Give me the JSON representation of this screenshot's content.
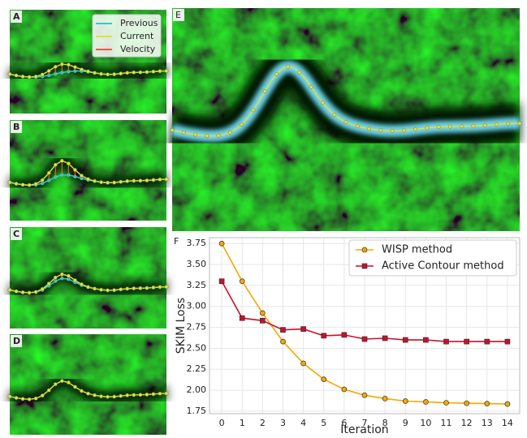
{
  "panels": [
    "A",
    "B",
    "C",
    "D",
    "E"
  ],
  "panel_legend": [
    "Previous",
    "Current",
    "Velocity"
  ],
  "chart_data": {
    "type": "line",
    "panel": "F",
    "x_label": "Iteration",
    "y_label": "SKIM Loss",
    "x": [
      0,
      1,
      2,
      3,
      4,
      5,
      6,
      7,
      8,
      9,
      10,
      11,
      12,
      13,
      14
    ],
    "series": [
      {
        "name": "WISP method",
        "color": "#f5a800",
        "marker": "circle",
        "values": [
          3.75,
          3.3,
          2.92,
          2.58,
          2.32,
          2.13,
          2.01,
          1.94,
          1.9,
          1.87,
          1.86,
          1.85,
          1.845,
          1.84,
          1.835
        ]
      },
      {
        "name": "Active Contour method",
        "color": "#c8102e",
        "marker": "square",
        "values": [
          3.3,
          2.86,
          2.83,
          2.72,
          2.73,
          2.65,
          2.66,
          2.61,
          2.62,
          2.6,
          2.6,
          2.58,
          2.58,
          2.58,
          2.58
        ]
      }
    ],
    "xlim": [
      -0.6,
      14.6
    ],
    "ylim": [
      1.72,
      3.82
    ],
    "xticks": [
      0,
      1,
      2,
      3,
      4,
      5,
      6,
      7,
      8,
      9,
      10,
      11,
      12,
      13,
      14
    ],
    "yticks": [
      1.75,
      {
        "value": 2,
        "label": "2.00"
      },
      2.25,
      {
        "value": 2.5,
        "label": "2.50"
      },
      2.75,
      {
        "value": 3,
        "label": "3.00"
      },
      3.25,
      {
        "value": 3.5,
        "label": "3.50"
      },
      3.75
    ],
    "grid": true,
    "legend": "upper right"
  }
}
